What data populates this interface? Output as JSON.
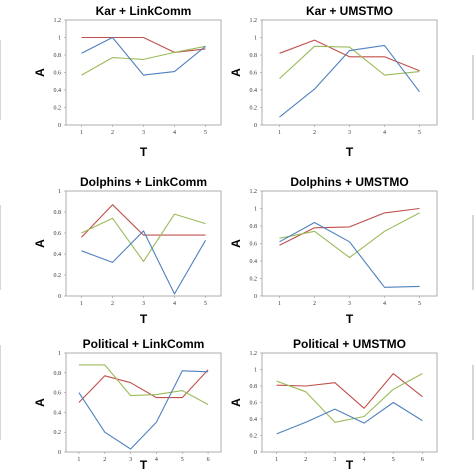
{
  "colors": {
    "series_red": "#c0504d",
    "series_green": "#9bbb59",
    "series_blue": "#4f81bd",
    "axis": "#9a9a9a"
  },
  "chart_data": [
    {
      "type": "line",
      "title": "Kar + LinkComm",
      "xlabel": "T",
      "ylabel": "A",
      "x": [
        1,
        2,
        3,
        4,
        5
      ],
      "ylim": [
        0,
        1.2
      ],
      "yticks": [
        "0",
        "0.2",
        "0.4",
        "0.6",
        "0.8",
        "1",
        "1.2"
      ],
      "xticks": [
        "1",
        "2",
        "3",
        "4",
        "5"
      ],
      "series": [
        {
          "color_key": "series_red",
          "values": [
            1.0,
            1.0,
            1.0,
            0.83,
            0.87
          ]
        },
        {
          "color_key": "series_green",
          "values": [
            0.57,
            0.77,
            0.75,
            0.83,
            0.9
          ]
        },
        {
          "color_key": "series_blue",
          "values": [
            0.82,
            1.0,
            0.57,
            0.61,
            0.9
          ]
        }
      ]
    },
    {
      "type": "line",
      "title": "Kar + UMSTMO",
      "xlabel": "T",
      "ylabel": "A",
      "x": [
        1,
        2,
        3,
        4,
        5
      ],
      "ylim": [
        0,
        1.2
      ],
      "yticks": [
        "0",
        "0.2",
        "0.4",
        "0.6",
        "0.8",
        "1",
        "1.2"
      ],
      "xticks": [
        "1",
        "2",
        "3",
        "4",
        "5"
      ],
      "series": [
        {
          "color_key": "series_red",
          "values": [
            0.82,
            0.97,
            0.78,
            0.78,
            0.62
          ]
        },
        {
          "color_key": "series_green",
          "values": [
            0.53,
            0.9,
            0.89,
            0.57,
            0.61
          ]
        },
        {
          "color_key": "series_blue",
          "values": [
            0.09,
            0.41,
            0.85,
            0.91,
            0.38
          ]
        }
      ]
    },
    {
      "type": "line",
      "title": "Dolphins + LinkComm",
      "xlabel": "T",
      "ylabel": "A",
      "x": [
        1,
        2,
        3,
        4,
        5
      ],
      "ylim": [
        0,
        1
      ],
      "yticks": [
        "0",
        "0.2",
        "0.4",
        "0.6",
        "0.8",
        "1"
      ],
      "xticks": [
        "1",
        "2",
        "3",
        "4",
        "5"
      ],
      "series": [
        {
          "color_key": "series_red",
          "values": [
            0.56,
            0.87,
            0.58,
            0.58,
            0.58
          ]
        },
        {
          "color_key": "series_green",
          "values": [
            0.6,
            0.74,
            0.33,
            0.78,
            0.69
          ]
        },
        {
          "color_key": "series_blue",
          "values": [
            0.43,
            0.32,
            0.62,
            0.02,
            0.53
          ]
        }
      ]
    },
    {
      "type": "line",
      "title": "Dolphins + UMSTMO",
      "xlabel": "T",
      "ylabel": "A",
      "x": [
        1,
        2,
        3,
        4,
        5
      ],
      "ylim": [
        0,
        1.2
      ],
      "yticks": [
        "0",
        "0.2",
        "0.4",
        "0.6",
        "0.8",
        "1",
        "1.2"
      ],
      "xticks": [
        "1",
        "2",
        "3",
        "4",
        "5"
      ],
      "series": [
        {
          "color_key": "series_red",
          "values": [
            0.58,
            0.78,
            0.79,
            0.95,
            1.0
          ]
        },
        {
          "color_key": "series_green",
          "values": [
            0.66,
            0.74,
            0.44,
            0.74,
            0.95
          ]
        },
        {
          "color_key": "series_blue",
          "values": [
            0.62,
            0.84,
            0.62,
            0.1,
            0.11
          ]
        }
      ]
    },
    {
      "type": "line",
      "title": "Political + LinkComm",
      "xlabel": "T",
      "ylabel": "A",
      "x": [
        1,
        2,
        3,
        4,
        5,
        6
      ],
      "ylim": [
        0,
        1
      ],
      "yticks": [
        "0",
        "0.2",
        "0.4",
        "0.6",
        "0.8",
        "1"
      ],
      "xticks": [
        "1",
        "2",
        "3",
        "4",
        "5",
        "6"
      ],
      "series": [
        {
          "color_key": "series_red",
          "values": [
            0.5,
            0.77,
            0.7,
            0.55,
            0.55,
            0.83
          ]
        },
        {
          "color_key": "series_green",
          "values": [
            0.88,
            0.88,
            0.57,
            0.58,
            0.62,
            0.48
          ]
        },
        {
          "color_key": "series_blue",
          "values": [
            0.6,
            0.2,
            0.03,
            0.3,
            0.82,
            0.81
          ]
        }
      ]
    },
    {
      "type": "line",
      "title": "Political + UMSTMO",
      "xlabel": "T",
      "ylabel": "A",
      "x": [
        1,
        2,
        3,
        4,
        5,
        6
      ],
      "ylim": [
        0,
        1.2
      ],
      "yticks": [
        "0",
        "0.2",
        "0.4",
        "0.6",
        "0.8",
        "1",
        "1.2"
      ],
      "xticks": [
        "1",
        "2",
        "3",
        "4",
        "5",
        "6"
      ],
      "series": [
        {
          "color_key": "series_red",
          "values": [
            0.81,
            0.8,
            0.84,
            0.53,
            0.95,
            0.67
          ]
        },
        {
          "color_key": "series_green",
          "values": [
            0.86,
            0.73,
            0.36,
            0.43,
            0.76,
            0.95
          ]
        },
        {
          "color_key": "series_blue",
          "values": [
            0.22,
            0.36,
            0.52,
            0.35,
            0.6,
            0.38
          ]
        }
      ]
    }
  ]
}
